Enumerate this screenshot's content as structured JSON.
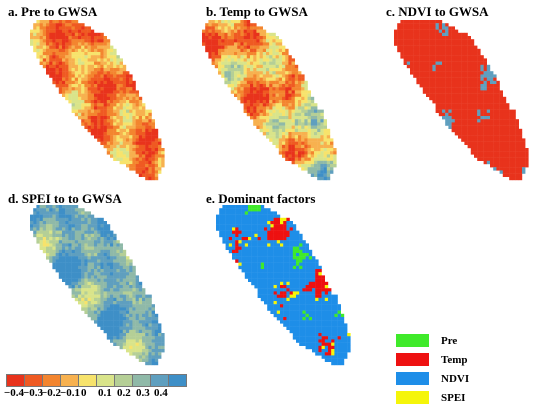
{
  "panels": {
    "a": {
      "title": "a. Pre to GWSA"
    },
    "b": {
      "title": "b. Temp to GWSA"
    },
    "c": {
      "title": "c. NDVI  to GWSA"
    },
    "d": {
      "title": "d. SPEI to  to GWSA"
    },
    "e": {
      "title": "e. Dominant factors"
    }
  },
  "colorbar": {
    "colors": [
      "#e8331c",
      "#ef5a22",
      "#f3852f",
      "#f7b14f",
      "#f7e36c",
      "#d9e48a",
      "#b5cf96",
      "#8fb9a8",
      "#5f9fbf",
      "#3e8fc7"
    ],
    "tick_labels": [
      "−0.4",
      "−0.3",
      "−0.2",
      "−0.1",
      "0",
      "0.1",
      "0.2",
      "0.3",
      "0.4"
    ]
  },
  "legend": {
    "items": [
      {
        "label": "Pre",
        "color": "#3fea2a"
      },
      {
        "label": "Temp",
        "color": "#ee1111"
      },
      {
        "label": "NDVI",
        "color": "#1e8ee8"
      },
      {
        "label": "SPEI",
        "color": "#f5f50a"
      }
    ]
  }
}
